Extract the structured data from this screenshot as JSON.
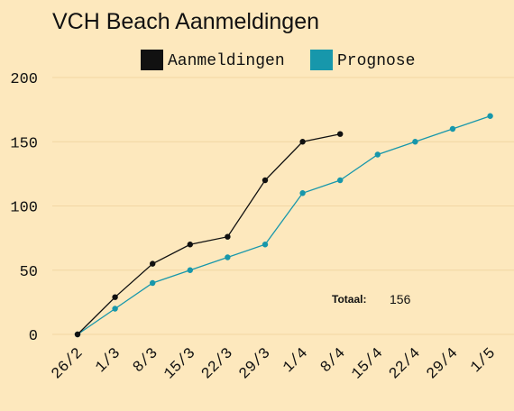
{
  "chart_data": {
    "type": "line",
    "title": "VCH Beach Aanmeldingen",
    "xlabel": "",
    "ylabel": "",
    "categories": [
      "26/2",
      "1/3",
      "8/3",
      "15/3",
      "22/3",
      "29/3",
      "1/4",
      "8/4",
      "15/4",
      "22/4",
      "29/4",
      "1/5"
    ],
    "ylim": [
      0,
      200
    ],
    "yticks": [
      0,
      50,
      100,
      150,
      200
    ],
    "grid": "horizontal",
    "legend": "top",
    "series": [
      {
        "name": "Aanmeldingen",
        "color": "#111111",
        "values": [
          0,
          29,
          55,
          70,
          76,
          120,
          150,
          156,
          null,
          null,
          null,
          null
        ]
      },
      {
        "name": "Prognose",
        "color": "#1797ab",
        "values": [
          0,
          20,
          40,
          50,
          60,
          70,
          110,
          120,
          140,
          150,
          160,
          170
        ]
      }
    ],
    "annotation": {
      "label": "Totaal:",
      "value": "156"
    }
  }
}
